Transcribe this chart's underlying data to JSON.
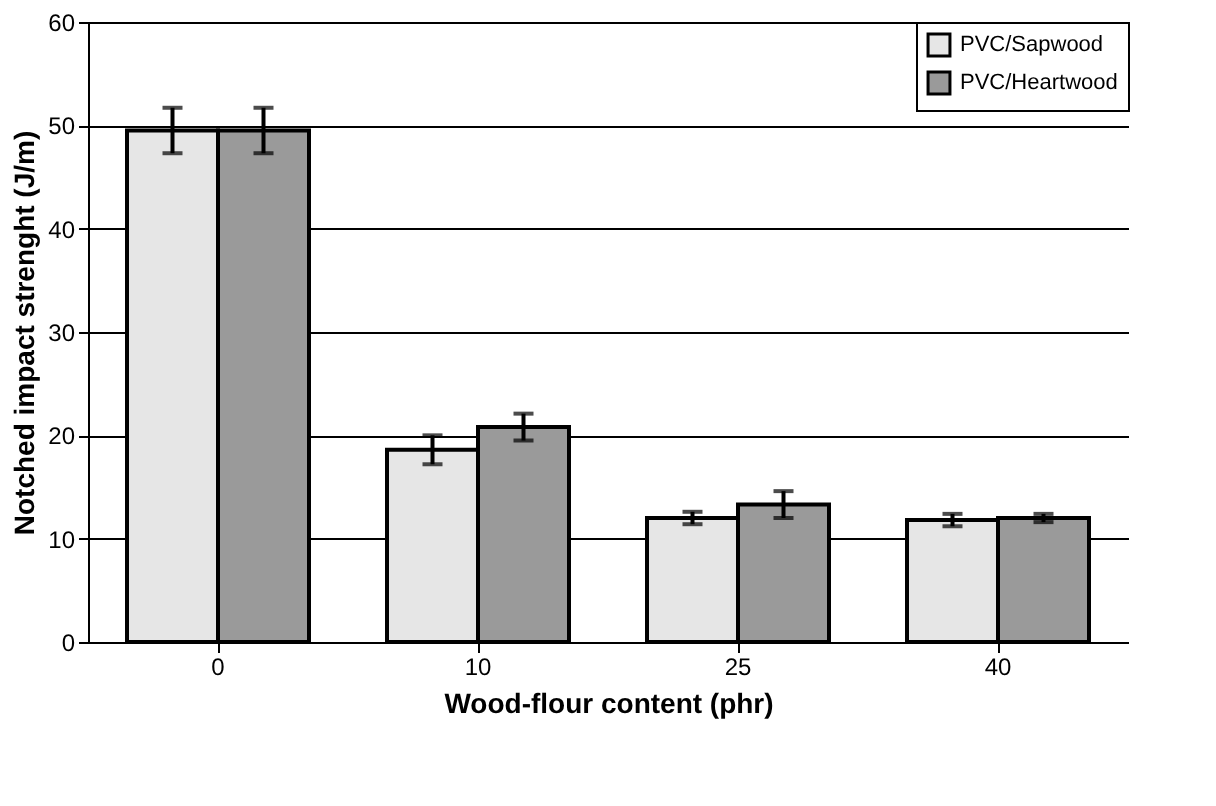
{
  "chart_data": {
    "type": "bar",
    "xlabel": "Wood-flour content (phr)",
    "ylabel": "Notched impact strenght (J/m)",
    "categories": [
      "0",
      "10",
      "25",
      "40"
    ],
    "series": [
      {
        "name": "PVC/Sapwood",
        "color": "#e6e6e6",
        "values": [
          49.5,
          18.6,
          12.0,
          11.8
        ],
        "errors": [
          2.2,
          1.4,
          0.6,
          0.6
        ]
      },
      {
        "name": "PVC/Heartwood",
        "color": "#9a9a9a",
        "values": [
          49.5,
          20.8,
          13.3,
          12.0
        ],
        "errors": [
          2.2,
          1.3,
          1.3,
          0.4
        ]
      }
    ],
    "ylim": [
      0,
      60
    ],
    "yticks": [
      0,
      10,
      20,
      30,
      40,
      50,
      60
    ],
    "grid": "y",
    "legend": "top right"
  }
}
